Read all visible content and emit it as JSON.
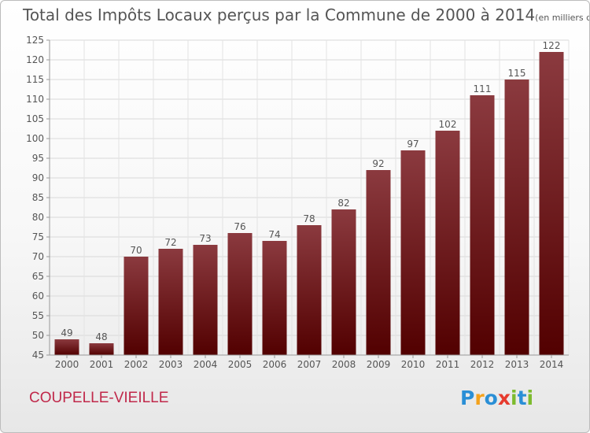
{
  "title": "Total des Impôts Locaux perçus par la Commune de 2000 à 2014",
  "unit": "(en milliers d'€)",
  "commune": "COUPELLE-VIEILLE",
  "logo": {
    "letters": [
      "P",
      "r",
      "o",
      "x",
      "i",
      "t",
      "i"
    ],
    "colors": [
      "#2a8fd6",
      "#f4a21c",
      "#2a8fd6",
      "#e63b2e",
      "#7dbb2e",
      "#2a8fd6",
      "#7dbb2e"
    ]
  },
  "colors": {
    "bar_top": "#8b3a3f",
    "bar_bottom": "#520000",
    "text": "#555555"
  },
  "chart_data": {
    "type": "bar",
    "title": "Total des Impôts Locaux perçus par la Commune de 2000 à 2014",
    "categories": [
      "2000",
      "2001",
      "2002",
      "2003",
      "2004",
      "2005",
      "2006",
      "2007",
      "2008",
      "2009",
      "2010",
      "2011",
      "2012",
      "2013",
      "2014"
    ],
    "values": [
      49,
      48,
      70,
      72,
      73,
      76,
      74,
      78,
      82,
      92,
      97,
      102,
      111,
      115,
      122
    ],
    "ylim": [
      45,
      125
    ],
    "yticks": [
      45,
      50,
      55,
      60,
      65,
      70,
      75,
      80,
      85,
      90,
      95,
      100,
      105,
      110,
      115,
      120,
      125
    ],
    "grid": true
  }
}
